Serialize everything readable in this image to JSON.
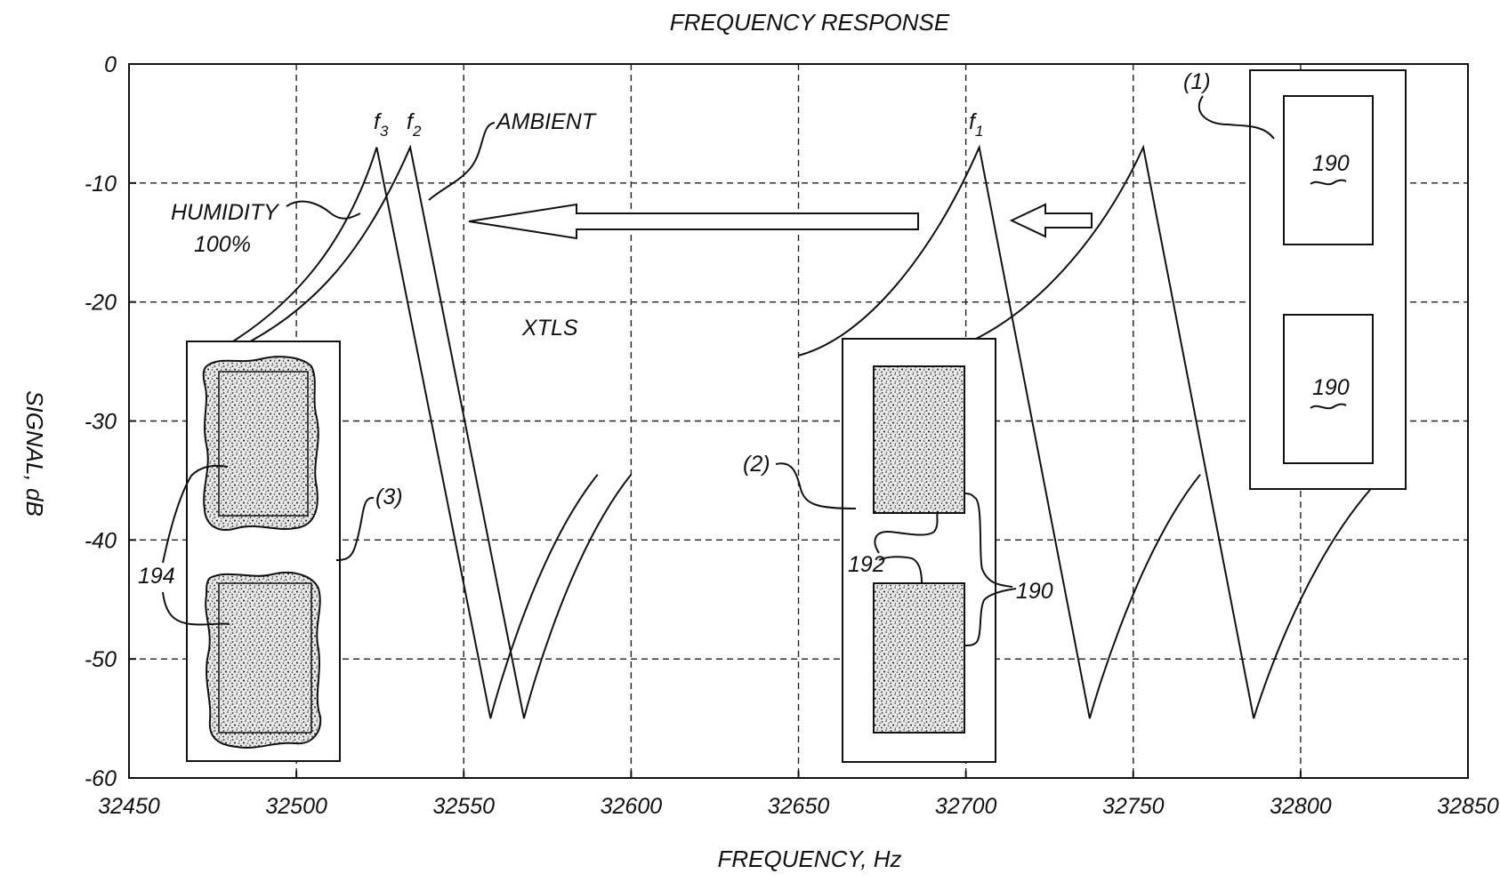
{
  "chart_data": {
    "type": "line",
    "title": "FREQUENCY RESPONSE",
    "xlabel": "FREQUENCY, Hz",
    "ylabel": "SIGNAL, dB",
    "xlim": [
      32450,
      32850
    ],
    "ylim": [
      -60,
      0
    ],
    "xticks": [
      32450,
      32500,
      32550,
      32600,
      32650,
      32700,
      32750,
      32800,
      32850
    ],
    "yticks": [
      0,
      -10,
      -20,
      -30,
      -40,
      -50,
      -60
    ],
    "grid": true,
    "series": [
      {
        "name": "HUMIDITY 100%",
        "x": [
          32480,
          32500,
          32515,
          32524,
          32540,
          32558,
          32570,
          32590
        ],
        "y": [
          -23.5,
          -20,
          -15,
          -7,
          -25,
          -55,
          -43,
          -34.5
        ]
      },
      {
        "name": "AMBIENT",
        "x": [
          32485,
          32505,
          32520,
          32534,
          32550,
          32568,
          32580,
          32600
        ],
        "y": [
          -23.5,
          -20.5,
          -16,
          -7,
          -25,
          -55,
          -43,
          -34.5
        ]
      },
      {
        "x": [
          32650,
          32670,
          32690,
          32704,
          32720,
          32737,
          32750,
          32770
        ],
        "y": [
          -24.5,
          -23,
          -16,
          -7,
          -25,
          -55,
          -43,
          -34.5
        ]
      },
      {
        "x": [
          32700,
          32720,
          32740,
          32753,
          32770,
          32786,
          32800,
          32825
        ],
        "y": [
          -23.5,
          -21,
          -15,
          -7,
          -25,
          -55,
          -43,
          -34.5
        ]
      }
    ],
    "annotations": {
      "peak_f3": "f",
      "peak_f3_sub": "3",
      "peak_f2": "f",
      "peak_f2_sub": "2",
      "peak_f1": "f",
      "peak_f1_sub": "1",
      "ambient": "AMBIENT",
      "humidity_line1": "HUMIDITY",
      "humidity_line2": "100%",
      "xtls": "XTLS"
    }
  },
  "insets": {
    "inset1_label": "(1)",
    "inset1_ref_top": "190",
    "inset1_ref_bottom": "190",
    "inset2_label": "(2)",
    "inset2_ref_192": "192",
    "inset2_ref_190": "190",
    "inset3_label": "(3)",
    "inset3_ref_194": "194"
  }
}
